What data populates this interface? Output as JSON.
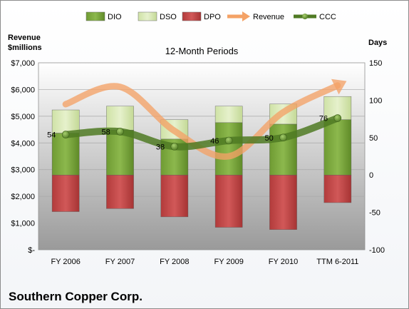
{
  "chart_data": {
    "type": "bar",
    "title": "Southern Copper Corp.",
    "subtitle": "12-Month Periods",
    "left_axis_label": [
      "Revenue",
      "$millions"
    ],
    "right_axis_label": "Days",
    "categories": [
      "FY 2006",
      "FY 2007",
      "FY 2008",
      "FY 2009",
      "FY 2010",
      "TTM 6-2011"
    ],
    "left_ticks": [
      "$-",
      "$1,000",
      "$2,000",
      "$3,000",
      "$4,000",
      "$5,000",
      "$6,000",
      "$7,000"
    ],
    "right_ticks": [
      "-100",
      "-50",
      "0",
      "50",
      "100",
      "150"
    ],
    "ylim_left": [
      0,
      7000
    ],
    "ylim_right": [
      -100,
      150
    ],
    "legend": [
      "DIO",
      "DSO",
      "DPO",
      "Revenue",
      "CCC"
    ],
    "legend_position": "top",
    "series": [
      {
        "name": "DIO",
        "axis": "right",
        "color": "#77a03a",
        "values": [
          56,
          60,
          48,
          70,
          68,
          74
        ]
      },
      {
        "name": "DSO",
        "axis": "right",
        "color": "#d7e7b4",
        "values": [
          31,
          32,
          26,
          22,
          27,
          31
        ]
      },
      {
        "name": "DPO",
        "axis": "right",
        "color": "#c24a4a",
        "values": [
          -49,
          -45,
          -56,
          -70,
          -73,
          -37
        ]
      },
      {
        "name": "Revenue",
        "axis": "left",
        "color": "#f4a266",
        "values": [
          5450,
          6100,
          4450,
          3500,
          5150,
          6150
        ]
      },
      {
        "name": "CCC",
        "axis": "right",
        "color": "#4f7a23",
        "values": [
          54,
          58,
          38,
          46,
          50,
          76
        ]
      }
    ]
  }
}
